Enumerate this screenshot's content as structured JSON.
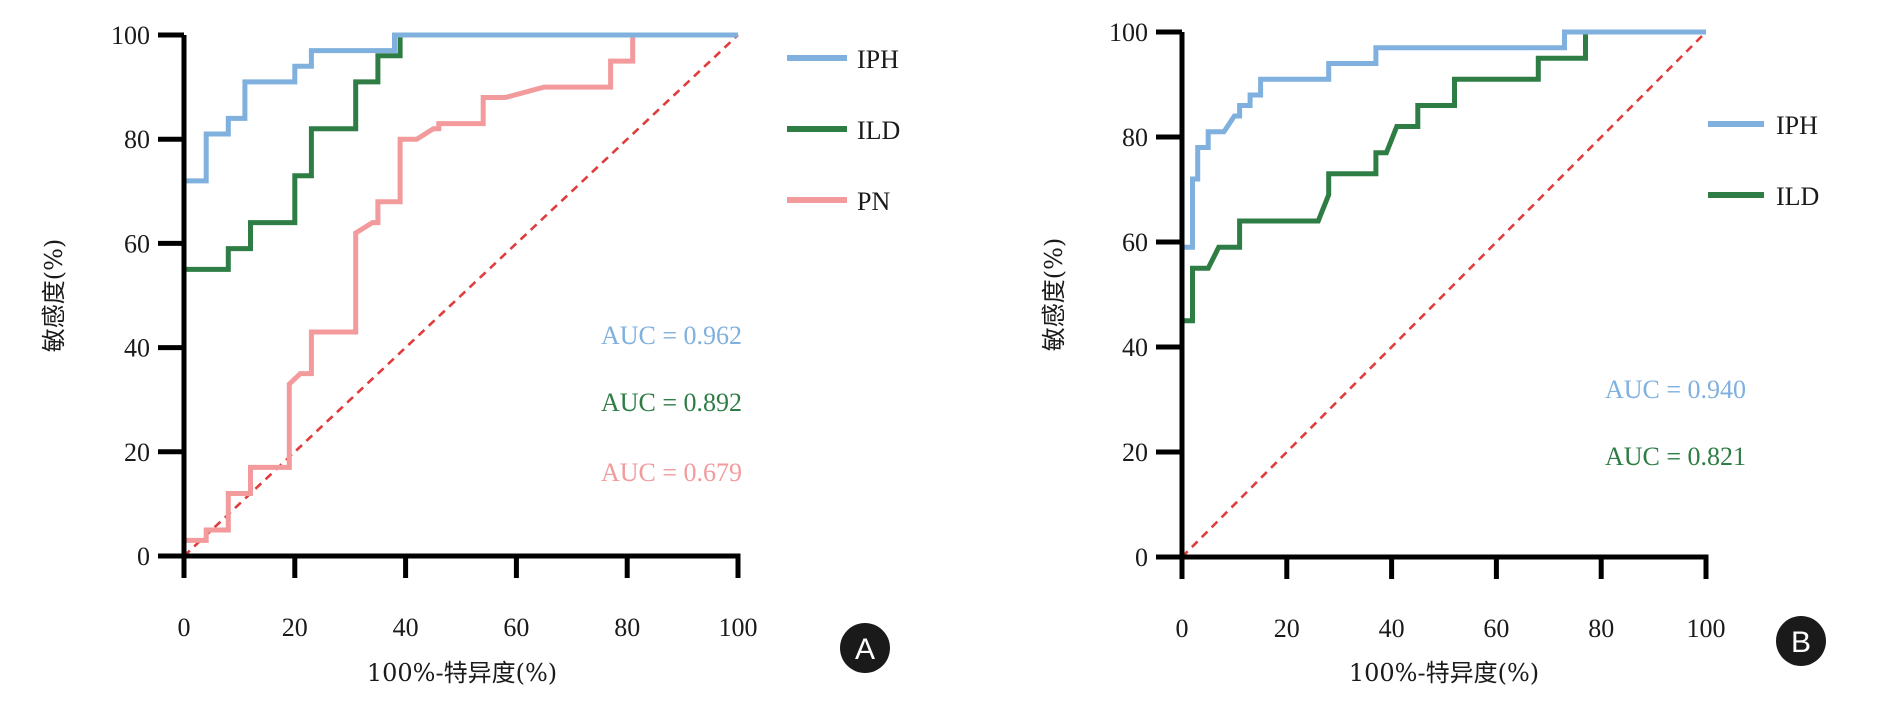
{
  "chart_data": [
    {
      "type": "line",
      "panel_label": "A",
      "title": "",
      "xlabel": "100%-特异度(%)",
      "ylabel": "敏感度(%)",
      "xlim": [
        0,
        100
      ],
      "ylim": [
        0,
        100
      ],
      "xticks": [
        "0",
        "20",
        "40",
        "60",
        "80",
        "100"
      ],
      "yticks": [
        "0",
        "20",
        "40",
        "60",
        "80",
        "100"
      ],
      "grid": false,
      "legend_position": "top-right, outside",
      "reference_line": {
        "name": "diagonal",
        "style": "dashed",
        "color": "#e03c3c",
        "points": [
          [
            0,
            0
          ],
          [
            100,
            100
          ]
        ]
      },
      "series": [
        {
          "name": "IPH",
          "color": "#7fb0de",
          "auc_label": "AUC = 0.962",
          "auc": 0.962,
          "points": [
            [
              0,
              0
            ],
            [
              0,
              72
            ],
            [
              4,
              72
            ],
            [
              4,
              81
            ],
            [
              8,
              81
            ],
            [
              8,
              84
            ],
            [
              11,
              84
            ],
            [
              11,
              91
            ],
            [
              20,
              91
            ],
            [
              20,
              94
            ],
            [
              23,
              94
            ],
            [
              23,
              97
            ],
            [
              38,
              97
            ],
            [
              38,
              100
            ],
            [
              100,
              100
            ]
          ]
        },
        {
          "name": "ILD",
          "color": "#2e7d45",
          "auc_label": "AUC = 0.892",
          "auc": 0.892,
          "points": [
            [
              0,
              0
            ],
            [
              0,
              55
            ],
            [
              8,
              55
            ],
            [
              8,
              59
            ],
            [
              12,
              59
            ],
            [
              12,
              64
            ],
            [
              20,
              64
            ],
            [
              20,
              73
            ],
            [
              23,
              73
            ],
            [
              23,
              82
            ],
            [
              31,
              82
            ],
            [
              31,
              91
            ],
            [
              35,
              91
            ],
            [
              35,
              96
            ],
            [
              39,
              96
            ],
            [
              39,
              100
            ],
            [
              81,
              100
            ]
          ]
        },
        {
          "name": "PN",
          "color": "#f29a9c",
          "auc_label": "AUC = 0.679",
          "auc": 0.679,
          "points": [
            [
              0,
              0
            ],
            [
              0,
              3
            ],
            [
              4,
              3
            ],
            [
              4,
              5
            ],
            [
              8,
              5
            ],
            [
              8,
              12
            ],
            [
              12,
              12
            ],
            [
              12,
              17
            ],
            [
              19,
              17
            ],
            [
              19,
              33
            ],
            [
              21,
              35
            ],
            [
              23,
              35
            ],
            [
              23,
              43
            ],
            [
              31,
              43
            ],
            [
              31,
              62
            ],
            [
              34,
              64
            ],
            [
              35,
              64
            ],
            [
              35,
              68
            ],
            [
              39,
              68
            ],
            [
              39,
              80
            ],
            [
              42,
              80
            ],
            [
              45,
              82
            ],
            [
              46,
              82
            ],
            [
              46,
              83
            ],
            [
              54,
              83
            ],
            [
              54,
              88
            ],
            [
              58,
              88
            ],
            [
              65,
              90
            ],
            [
              77,
              90
            ],
            [
              77,
              95
            ],
            [
              81,
              95
            ],
            [
              81,
              100
            ],
            [
              100,
              100
            ]
          ]
        }
      ]
    },
    {
      "type": "line",
      "panel_label": "B",
      "title": "",
      "xlabel": "100%-特异度(%)",
      "ylabel": "敏感度(%)",
      "xlim": [
        0,
        100
      ],
      "ylim": [
        0,
        100
      ],
      "xticks": [
        "0",
        "20",
        "40",
        "60",
        "80",
        "100"
      ],
      "yticks": [
        "0",
        "20",
        "40",
        "60",
        "80",
        "100"
      ],
      "grid": false,
      "legend_position": "top-right, outside",
      "reference_line": {
        "name": "diagonal",
        "style": "dashed",
        "color": "#e03c3c",
        "points": [
          [
            0,
            0
          ],
          [
            100,
            100
          ]
        ]
      },
      "series": [
        {
          "name": "IPH",
          "color": "#7fb0de",
          "auc_label": "AUC = 0.940",
          "auc": 0.94,
          "points": [
            [
              0,
              0
            ],
            [
              0,
              59
            ],
            [
              2,
              59
            ],
            [
              2,
              72
            ],
            [
              3,
              72
            ],
            [
              3,
              78
            ],
            [
              5,
              78
            ],
            [
              5,
              81
            ],
            [
              8,
              81
            ],
            [
              10,
              84
            ],
            [
              11,
              84
            ],
            [
              11,
              86
            ],
            [
              13,
              86
            ],
            [
              13,
              88
            ],
            [
              15,
              88
            ],
            [
              15,
              91
            ],
            [
              28,
              91
            ],
            [
              28,
              94
            ],
            [
              37,
              94
            ],
            [
              37,
              97
            ],
            [
              73,
              97
            ],
            [
              73,
              100
            ],
            [
              100,
              100
            ]
          ]
        },
        {
          "name": "ILD",
          "color": "#2e7d45",
          "auc_label": "AUC = 0.821",
          "auc": 0.821,
          "points": [
            [
              0,
              0
            ],
            [
              0,
              45
            ],
            [
              2,
              45
            ],
            [
              2,
              55
            ],
            [
              5,
              55
            ],
            [
              7,
              59
            ],
            [
              11,
              59
            ],
            [
              11,
              64
            ],
            [
              26,
              64
            ],
            [
              28,
              69
            ],
            [
              28,
              73
            ],
            [
              37,
              73
            ],
            [
              37,
              77
            ],
            [
              39,
              77
            ],
            [
              41,
              82
            ],
            [
              45,
              82
            ],
            [
              45,
              86
            ],
            [
              52,
              86
            ],
            [
              52,
              91
            ],
            [
              68,
              91
            ],
            [
              68,
              95
            ],
            [
              77,
              95
            ],
            [
              77,
              100
            ]
          ]
        }
      ]
    }
  ]
}
